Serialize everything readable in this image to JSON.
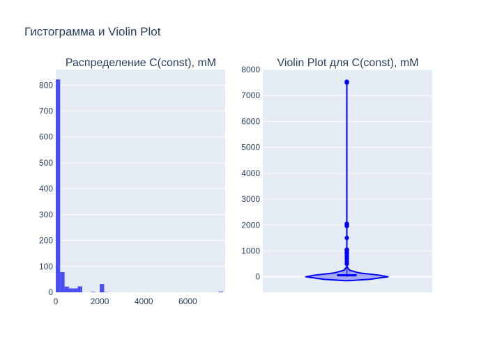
{
  "title": "Гистограмма и Violin Plot",
  "chart_data": [
    {
      "type": "bar",
      "subtype": "histogram",
      "title": "Распределение C(const), mM",
      "xlabel": "",
      "ylabel": "",
      "xlim": [
        0,
        7700
      ],
      "ylim": [
        0,
        860
      ],
      "bin_width": 200,
      "bins": [
        {
          "start": 0,
          "value": 822
        },
        {
          "start": 200,
          "value": 78
        },
        {
          "start": 400,
          "value": 22
        },
        {
          "start": 600,
          "value": 15
        },
        {
          "start": 800,
          "value": 15
        },
        {
          "start": 1000,
          "value": 23
        },
        {
          "start": 1200,
          "value": 0
        },
        {
          "start": 1400,
          "value": 0
        },
        {
          "start": 1600,
          "value": 2
        },
        {
          "start": 1800,
          "value": 0
        },
        {
          "start": 2000,
          "value": 32
        },
        {
          "start": 2200,
          "value": 1
        },
        {
          "start": 7400,
          "value": 3
        }
      ],
      "x_ticks": [
        "0",
        "2000",
        "4000",
        "6000"
      ],
      "x_tick_values": [
        0,
        2000,
        4000,
        6000
      ],
      "y_ticks": [
        "0",
        "100",
        "200",
        "300",
        "400",
        "500",
        "600",
        "700",
        "800"
      ],
      "y_tick_values": [
        0,
        100,
        200,
        300,
        400,
        500,
        600,
        700,
        800
      ],
      "color": "#4a4df2",
      "grid": true
    },
    {
      "type": "violin",
      "title": "Violin Plot для C(const), mM",
      "xlabel": "",
      "ylabel": "",
      "ylim": [
        -600,
        8000
      ],
      "y_ticks": [
        "0",
        "1000",
        "2000",
        "3000",
        "4000",
        "5000",
        "6000",
        "7000",
        "8000"
      ],
      "y_tick_values": [
        0,
        1000,
        2000,
        3000,
        4000,
        5000,
        6000,
        7000,
        8000
      ],
      "distribution": {
        "min": 0,
        "q1": 20,
        "median": 40,
        "q3": 100,
        "max": 7600,
        "density_profile": [
          {
            "y": -150,
            "w": 0.05
          },
          {
            "y": -100,
            "w": 0.55
          },
          {
            "y": 0,
            "w": 1.0
          },
          {
            "y": 60,
            "w": 0.8
          },
          {
            "y": 150,
            "w": 0.3
          },
          {
            "y": 250,
            "w": 0.07
          },
          {
            "y": 400,
            "w": 0.0
          }
        ]
      },
      "outliers": [
        7500,
        7530,
        2050,
        2000,
        1960,
        1500,
        1050,
        1000,
        950,
        900,
        800,
        700,
        600,
        500
      ],
      "color": "#0000ff",
      "fill": "#6a6ff0",
      "grid": true
    }
  ],
  "colors": {
    "plot_bg": "#e5ecf6",
    "grid": "#ffffff",
    "text": "#2a3f5f"
  }
}
